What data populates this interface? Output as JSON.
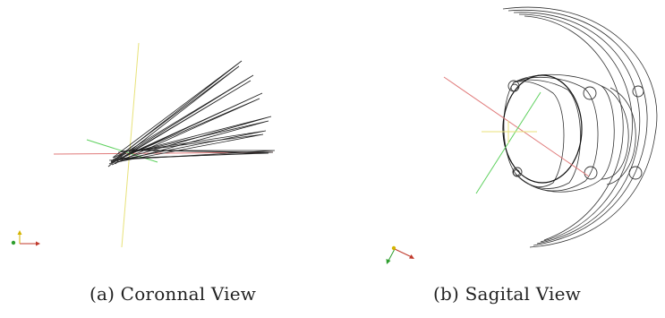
{
  "figure": {
    "panels": [
      {
        "caption": "(a) Coronnal View",
        "view": "coronal"
      },
      {
        "caption": "(b) Sagital View",
        "view": "sagittal"
      }
    ]
  },
  "colors": {
    "axis_x": "#e07a7a",
    "axis_y": "#e8e27a",
    "axis_z": "#5fd15f",
    "wire": "#222222",
    "triad_x": "#c0392b",
    "triad_y": "#d4b300",
    "triad_z": "#2e9e2e"
  },
  "icons": [
    "orientation-triad-icon"
  ]
}
